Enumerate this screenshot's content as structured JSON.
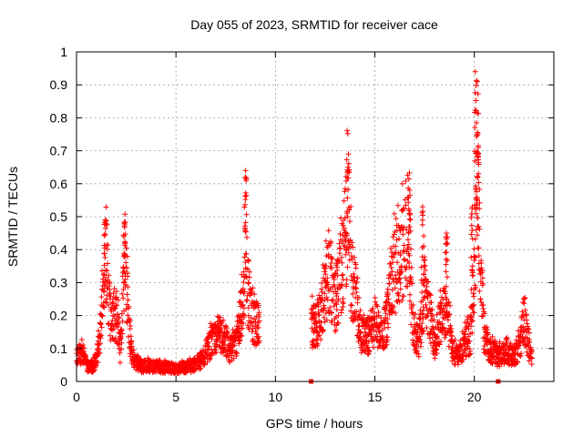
{
  "chart_data": {
    "type": "scatter",
    "title": "Day 055 of 2023, SRMTID for receiver cace",
    "xlabel": "GPS time / hours",
    "ylabel": "SRMTID / TECUs",
    "xlim": [
      0,
      24
    ],
    "ylim": [
      0,
      1
    ],
    "xticks": [
      0,
      5,
      10,
      15,
      20
    ],
    "xtick_labels": [
      "0",
      "5",
      "10",
      "15",
      "20"
    ],
    "yticks": [
      0,
      0.1,
      0.2,
      0.3,
      0.4,
      0.5,
      0.6,
      0.7,
      0.8,
      0.9,
      1
    ],
    "ytick_labels": [
      "0",
      "0.1",
      "0.2",
      "0.3",
      "0.4",
      "0.5",
      "0.6",
      "0.7",
      "0.8",
      "0.9",
      "1"
    ],
    "grid": true,
    "marker": "plus",
    "color": "#ff0000",
    "zero_markers_x": [
      11.8,
      21.2
    ],
    "envelope": [
      [
        0.0,
        0.08
      ],
      [
        0.3,
        0.1
      ],
      [
        0.5,
        0.05
      ],
      [
        0.8,
        0.05
      ],
      [
        1.0,
        0.07
      ],
      [
        1.2,
        0.15
      ],
      [
        1.35,
        0.3
      ],
      [
        1.5,
        0.45
      ],
      [
        1.6,
        0.3
      ],
      [
        1.75,
        0.18
      ],
      [
        1.9,
        0.2
      ],
      [
        2.1,
        0.2
      ],
      [
        2.2,
        0.1
      ],
      [
        2.35,
        0.3
      ],
      [
        2.45,
        0.43
      ],
      [
        2.6,
        0.2
      ],
      [
        2.8,
        0.08
      ],
      [
        3.2,
        0.05
      ],
      [
        4.0,
        0.05
      ],
      [
        5.0,
        0.04
      ],
      [
        5.8,
        0.05
      ],
      [
        6.3,
        0.07
      ],
      [
        6.7,
        0.12
      ],
      [
        7.0,
        0.15
      ],
      [
        7.4,
        0.15
      ],
      [
        7.7,
        0.1
      ],
      [
        8.0,
        0.12
      ],
      [
        8.2,
        0.2
      ],
      [
        8.4,
        0.25
      ],
      [
        8.5,
        0.55
      ],
      [
        8.6,
        0.3
      ],
      [
        8.9,
        0.2
      ],
      [
        9.2,
        0.18
      ],
      [
        11.8,
        0.18
      ],
      [
        12.2,
        0.2
      ],
      [
        12.5,
        0.28
      ],
      [
        12.7,
        0.35
      ],
      [
        12.9,
        0.25
      ],
      [
        13.2,
        0.3
      ],
      [
        13.5,
        0.45
      ],
      [
        13.65,
        0.58
      ],
      [
        13.8,
        0.35
      ],
      [
        14.0,
        0.3
      ],
      [
        14.3,
        0.15
      ],
      [
        14.7,
        0.15
      ],
      [
        15.0,
        0.2
      ],
      [
        15.3,
        0.15
      ],
      [
        15.6,
        0.2
      ],
      [
        15.9,
        0.35
      ],
      [
        16.2,
        0.38
      ],
      [
        16.5,
        0.45
      ],
      [
        16.7,
        0.5
      ],
      [
        16.9,
        0.2
      ],
      [
        17.2,
        0.12
      ],
      [
        17.5,
        0.3
      ],
      [
        17.8,
        0.2
      ],
      [
        18.0,
        0.12
      ],
      [
        18.3,
        0.2
      ],
      [
        18.6,
        0.25
      ],
      [
        18.9,
        0.1
      ],
      [
        19.2,
        0.08
      ],
      [
        19.5,
        0.12
      ],
      [
        19.8,
        0.15
      ],
      [
        20.0,
        0.35
      ],
      [
        20.15,
        0.6
      ],
      [
        20.3,
        0.4
      ],
      [
        20.5,
        0.15
      ],
      [
        20.8,
        0.1
      ],
      [
        21.2,
        0.08
      ],
      [
        21.6,
        0.1
      ],
      [
        22.0,
        0.08
      ],
      [
        22.3,
        0.12
      ],
      [
        22.5,
        0.22
      ],
      [
        22.7,
        0.12
      ],
      [
        22.9,
        0.07
      ]
    ],
    "spikes": [
      [
        1.45,
        0.49
      ],
      [
        2.4,
        0.48
      ],
      [
        8.5,
        0.64
      ],
      [
        13.65,
        0.65
      ],
      [
        16.75,
        0.58
      ],
      [
        17.4,
        0.53
      ],
      [
        18.6,
        0.45
      ],
      [
        20.05,
        0.94
      ],
      [
        20.15,
        0.91
      ],
      [
        20.2,
        0.71
      ],
      [
        19.9,
        0.53
      ]
    ]
  }
}
